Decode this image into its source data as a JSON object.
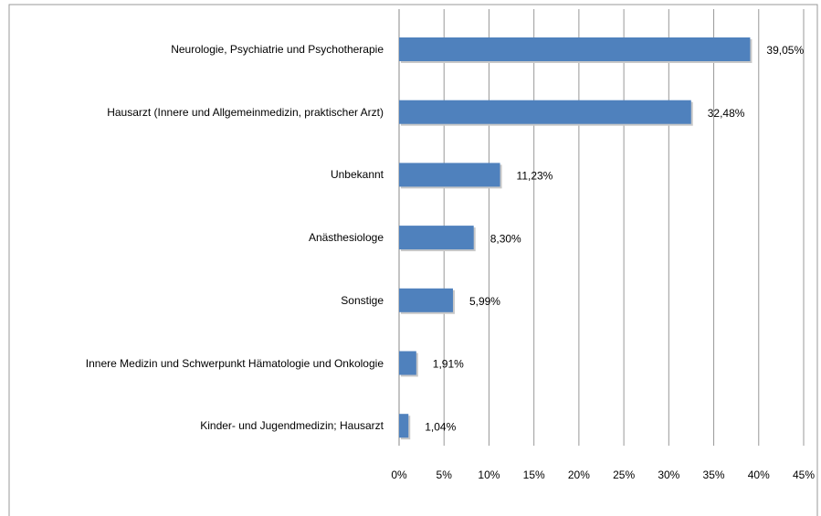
{
  "chart_data": {
    "type": "bar",
    "orientation": "horizontal",
    "categories": [
      "Neurologie, Psychiatrie und Psychotherapie",
      "Hausarzt (Innere und Allgemeinmedizin, praktischer Arzt)",
      "Unbekannt",
      "Anästhesiologe",
      "Sonstige",
      "Innere Medizin und Schwerpunkt Hämatologie und Onkologie",
      "Kinder- und Jugendmedizin; Hausarzt"
    ],
    "values": [
      39.05,
      32.48,
      11.23,
      8.3,
      5.99,
      1.91,
      1.04
    ],
    "value_labels": [
      "39,05%",
      "32,48%",
      "11,23%",
      "8,30%",
      "5,99%",
      "1,91%",
      "1,04%"
    ],
    "color": "#4f81bd",
    "xlim": [
      0,
      45
    ],
    "xticks": [
      {
        "value": 0,
        "label": "0%"
      },
      {
        "value": 5,
        "label": "5%"
      },
      {
        "value": 10,
        "label": "10%"
      },
      {
        "value": 15,
        "label": "15%"
      },
      {
        "value": 20,
        "label": "20%"
      },
      {
        "value": 25,
        "label": "25%"
      },
      {
        "value": 30,
        "label": "30%"
      },
      {
        "value": 35,
        "label": "35%"
      },
      {
        "value": 40,
        "label": "40%"
      },
      {
        "value": 45,
        "label": "45%"
      }
    ],
    "grid": true
  }
}
